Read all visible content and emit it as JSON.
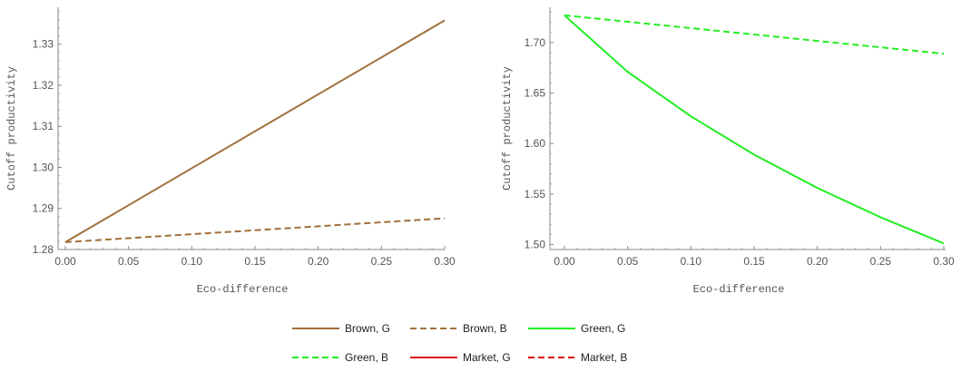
{
  "chart_data": [
    {
      "type": "line",
      "xlabel": "Eco-difference",
      "ylabel": "Cutoff productivity",
      "xlim": [
        0,
        0.3
      ],
      "ylim": [
        1.28,
        1.339
      ],
      "xticks": [
        "0.00",
        "0.05",
        "0.10",
        "0.15",
        "0.20",
        "0.25",
        "0.30"
      ],
      "yticks": [
        "1.28",
        "1.29",
        "1.30",
        "1.31",
        "1.32",
        "1.33"
      ],
      "grid": false,
      "series": [
        {
          "name": "Brown, G",
          "color": "#a0703c",
          "dash": "solid",
          "x": [
            0,
            0.3
          ],
          "y": [
            1.2818,
            1.3358
          ]
        },
        {
          "name": "Brown, B",
          "color": "#a0703c",
          "dash": "dashed",
          "x": [
            0,
            0.3
          ],
          "y": [
            1.2818,
            1.2876
          ]
        }
      ]
    },
    {
      "type": "line",
      "xlabel": "Eco-difference",
      "ylabel": "Cutoff productivity",
      "xlim": [
        0,
        0.3
      ],
      "ylim": [
        1.495,
        1.735
      ],
      "xticks": [
        "0.00",
        "0.05",
        "0.10",
        "0.15",
        "0.20",
        "0.25",
        "0.30"
      ],
      "yticks": [
        "1.50",
        "1.55",
        "1.60",
        "1.65",
        "1.70"
      ],
      "grid": false,
      "series": [
        {
          "name": "Green, G",
          "color": "#22ee22",
          "dash": "solid",
          "x": [
            0,
            0.05,
            0.1,
            0.15,
            0.2,
            0.25,
            0.3
          ],
          "y": [
            1.727,
            1.671,
            1.627,
            1.589,
            1.556,
            1.527,
            1.501
          ]
        },
        {
          "name": "Green, B",
          "color": "#22ee22",
          "dash": "dashed",
          "x": [
            0,
            0.3
          ],
          "y": [
            1.727,
            1.689
          ]
        }
      ]
    }
  ],
  "legend": [
    {
      "label": "Brown, G",
      "color": "#a0703c",
      "dash": "solid"
    },
    {
      "label": "Brown, B",
      "color": "#a0703c",
      "dash": "dashed"
    },
    {
      "label": "Green, G",
      "color": "#22ee22",
      "dash": "solid"
    },
    {
      "label": "Green, B",
      "color": "#22ee22",
      "dash": "dashed"
    },
    {
      "label": "Market, G",
      "color": "#dd0000",
      "dash": "solid"
    },
    {
      "label": "Market, B",
      "color": "#dd0000",
      "dash": "dashed"
    }
  ]
}
